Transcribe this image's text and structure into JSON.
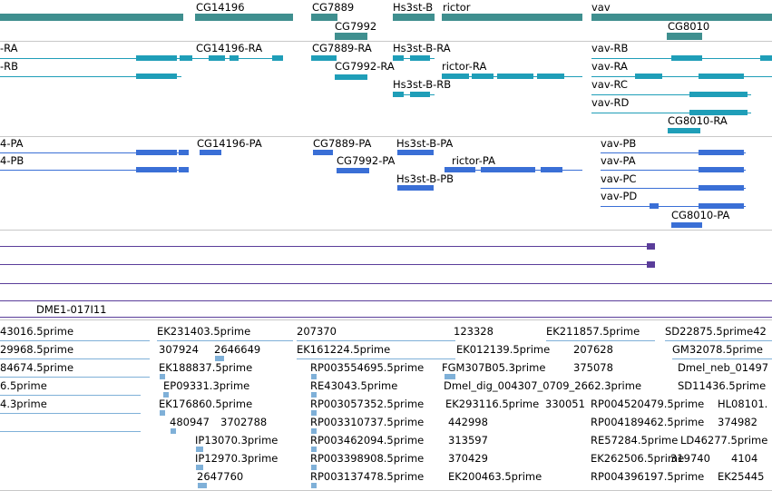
{
  "genes": [
    "CG14196",
    "CG7889",
    "CG7992",
    "Hs3st-B",
    "rictor",
    "vav",
    "CG8010"
  ],
  "transcripts": [
    "-RA",
    "-RB",
    "CG14196-RA",
    "CG7889-RA",
    "CG7992-RA",
    "Hs3st-B-RA",
    "Hs3st-B-RB",
    "rictor-RA",
    "vav-RB",
    "vav-RA",
    "vav-RC",
    "vav-RD",
    "CG8010-RA"
  ],
  "proteins": [
    "4-PA",
    "4-PB",
    "CG14196-PA",
    "CG7889-PA",
    "CG7992-PA",
    "Hs3st-B-PA",
    "Hs3st-B-PB",
    "rictor-PA",
    "vav-PB",
    "vav-PA",
    "vav-PC",
    "vav-PD",
    "CG8010-PA"
  ],
  "clone_label": "DME1-017I11",
  "cdna_labels": [
    "43016.5prime",
    "29968.5prime",
    "84674.5prime",
    "6.5prime",
    "4.3prime",
    "EK231403.5prime",
    "307924",
    "2646649",
    "EK188837.5prime",
    "EP09331.3prime",
    "EK176860.5prime",
    "480947",
    "3702788",
    "IP13070.3prime",
    "IP12970.3prime",
    "2647760",
    "207370",
    "EK161224.5prime",
    "RP003554695.5prime",
    "RE43043.5prime",
    "RP003057352.5prime",
    "RP003310737.5prime",
    "RP003462094.5prime",
    "RP003398908.5prime",
    "RP003137478.5prime",
    "123328",
    "EK012139.5prime",
    "FGM307B05.3prime",
    "Dmel_dig_004307_0709_2662.3prime",
    "EK293116.5prime",
    "330051",
    "442998",
    "313597",
    "370429",
    "EK200463.5prime",
    "EK211857.5prime",
    "207628",
    "375078",
    "RP004520479.5prime",
    "RP004189462.5prime",
    "RE57284.5prime",
    "EK262506.5prime",
    "319740",
    "RP004396197.5prime",
    "SD22875.5prime42",
    "GM32078.5prime",
    "Dmel_neb_01497",
    "SD11436.5prime",
    "HL08101.",
    "374982",
    "LD46277.5prime",
    "4104",
    "EK25445"
  ]
}
